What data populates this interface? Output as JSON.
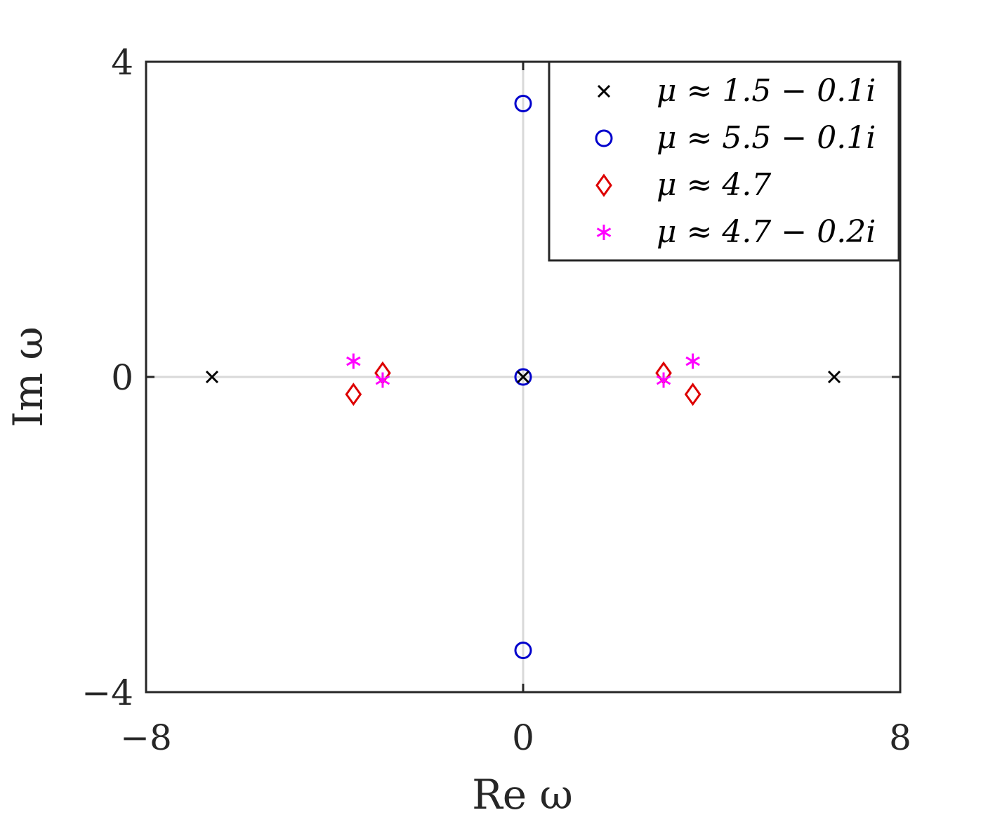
{
  "chart_data": {
    "type": "scatter",
    "xlabel": "Re ω",
    "ylabel": "Im ω",
    "xlim": [
      -8,
      8
    ],
    "ylim": [
      -4,
      4
    ],
    "x_ticks": [
      "−8",
      "0",
      "8"
    ],
    "y_ticks": [
      "4",
      "0",
      "−4"
    ],
    "x_tick_values": [
      -8,
      0,
      8
    ],
    "y_tick_values": [
      4,
      0,
      -4
    ],
    "grid": "zero lines only",
    "legend_position": "top-right",
    "series": [
      {
        "name": "μ ≈ 1.5 − 0.1i",
        "marker": "x",
        "color": "#000000",
        "x": [
          -6.6,
          0.0,
          6.6
        ],
        "y": [
          0.0,
          0.0,
          0.0
        ]
      },
      {
        "name": "μ ≈ 5.5 − 0.1i",
        "marker": "circle",
        "color": "#0000cc",
        "x": [
          0.0,
          0.0,
          0.0
        ],
        "y": [
          3.47,
          0.0,
          -3.47
        ]
      },
      {
        "name": "μ ≈ 4.7",
        "marker": "diamond",
        "color": "#dd0000",
        "x": [
          -3.6,
          -2.98,
          2.98,
          3.6
        ],
        "y": [
          -0.22,
          0.05,
          0.05,
          -0.22
        ]
      },
      {
        "name": "μ ≈ 4.7 − 0.2i",
        "marker": "asterisk",
        "color": "#ff00ff",
        "x": [
          -3.6,
          -2.98,
          2.98,
          3.6
        ],
        "y": [
          0.2,
          -0.04,
          -0.04,
          0.2
        ]
      }
    ]
  }
}
